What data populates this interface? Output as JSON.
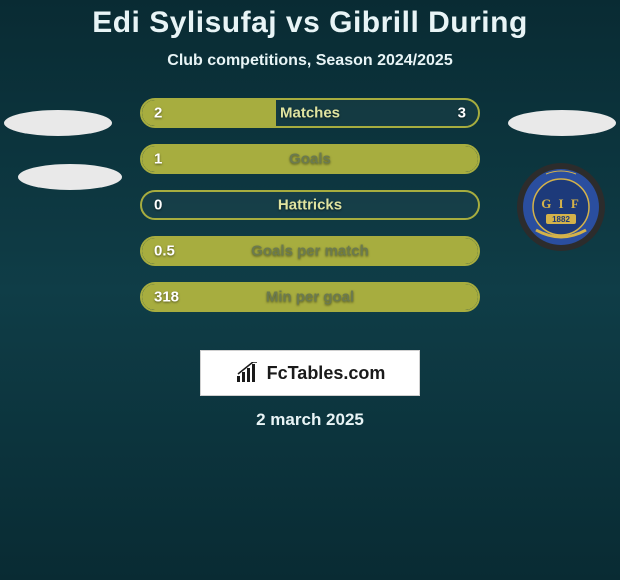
{
  "title": "Edi Sylisufaj vs Gibrill During",
  "subtitle": "Club competitions, Season 2024/2025",
  "date": "2 march 2025",
  "logo_text": "FcTables.com",
  "colors": {
    "bg_gradient_top": "#092b33",
    "bg_gradient_mid": "#0f3d47",
    "bar_border": "#a7ad3f",
    "bar_fill": "#a7ad3f",
    "ellipse": "#e9e9e9",
    "text": "#e8f4f6",
    "label_outside_fill": "#dfe3a0",
    "label_inside_fill": "#6b7a4f"
  },
  "bars": [
    {
      "label": "Matches",
      "left": "2",
      "right": "3",
      "fill_pct": 40,
      "label_inside_fill": false
    },
    {
      "label": "Goals",
      "left": "1",
      "right": "",
      "fill_pct": 100,
      "label_inside_fill": true
    },
    {
      "label": "Hattricks",
      "left": "0",
      "right": "",
      "fill_pct": 0,
      "label_inside_fill": false
    },
    {
      "label": "Goals per match",
      "left": "0.5",
      "right": "",
      "fill_pct": 100,
      "label_inside_fill": true
    },
    {
      "label": "Min per goal",
      "left": "318",
      "right": "",
      "fill_pct": 100,
      "label_inside_fill": true
    }
  ],
  "club_badge": {
    "outer_color": "#2c2c2c",
    "ring_color": "#2a4e9f",
    "inner_color": "#1d3a7a",
    "top_text": "",
    "center_text": "G I F",
    "year": "1882"
  }
}
